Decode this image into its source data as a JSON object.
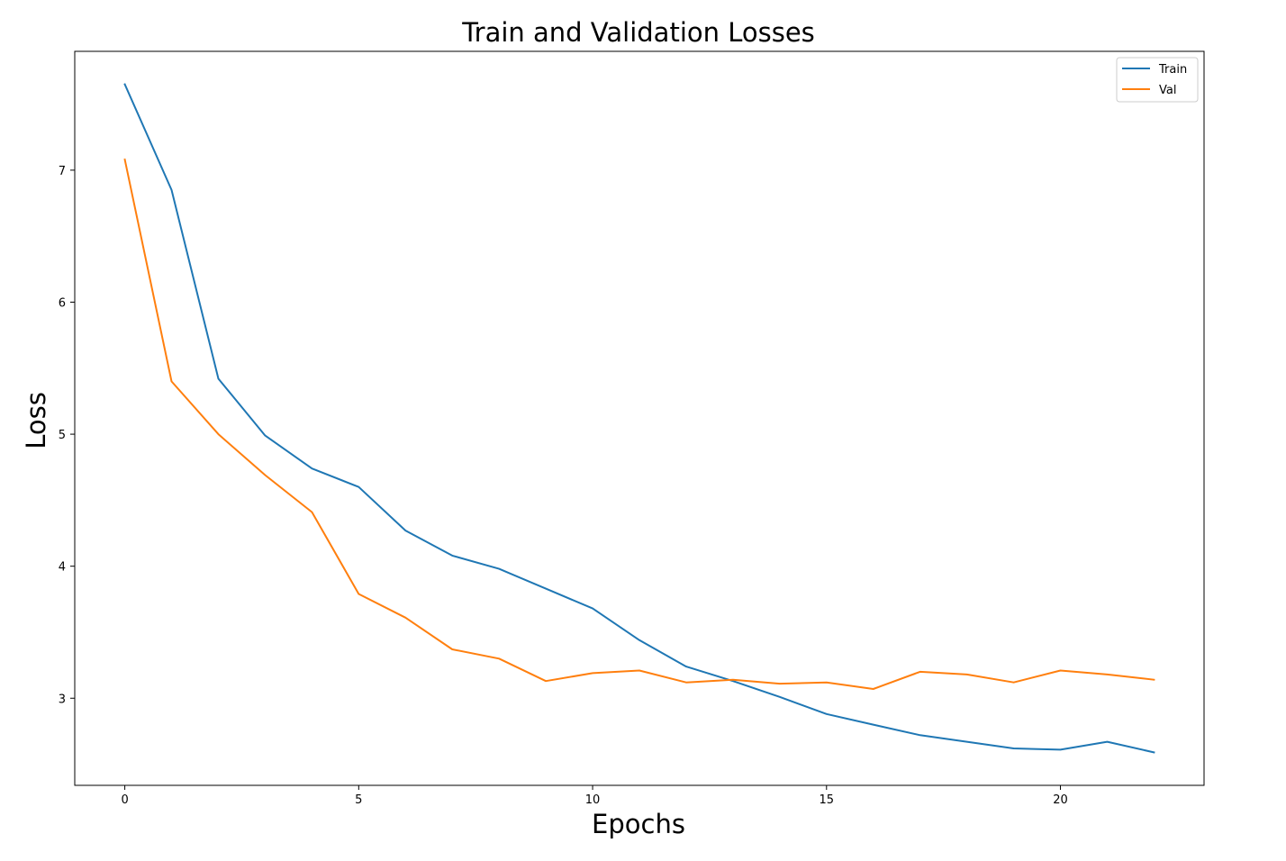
{
  "chart_data": {
    "type": "line",
    "title": "Train and Validation Losses",
    "xlabel": "Epochs",
    "ylabel": "Loss",
    "xlim": [
      -1.07,
      23.07
    ],
    "ylim": [
      2.34,
      7.9
    ],
    "xticks": [
      0,
      5,
      10,
      15,
      20
    ],
    "yticks": [
      3,
      4,
      5,
      6,
      7
    ],
    "grid": false,
    "legend_position": "top-right",
    "x": [
      0,
      1,
      2,
      3,
      4,
      5,
      6,
      7,
      8,
      9,
      10,
      11,
      12,
      13,
      14,
      15,
      16,
      17,
      18,
      19,
      20,
      21,
      22
    ],
    "series": [
      {
        "name": "Train",
        "color": "#1f77b4",
        "values": [
          7.65,
          6.85,
          5.42,
          4.99,
          4.74,
          4.6,
          4.27,
          4.08,
          3.98,
          3.83,
          3.68,
          3.44,
          3.24,
          3.13,
          3.01,
          2.88,
          2.8,
          2.72,
          2.67,
          2.62,
          2.61,
          2.67,
          2.59
        ]
      },
      {
        "name": "Val",
        "color": "#ff7f0e",
        "values": [
          7.08,
          5.4,
          5.0,
          4.69,
          4.41,
          3.79,
          3.61,
          3.37,
          3.3,
          3.13,
          3.19,
          3.21,
          3.12,
          3.14,
          3.11,
          3.12,
          3.07,
          3.2,
          3.18,
          3.12,
          3.21,
          3.18,
          3.14
        ]
      }
    ]
  }
}
